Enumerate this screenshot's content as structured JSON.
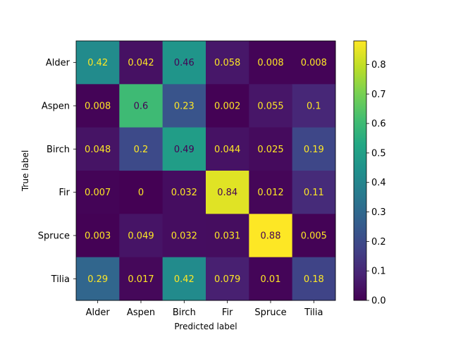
{
  "chart_data": {
    "type": "heatmap",
    "title": "",
    "xlabel": "Predicted label",
    "ylabel": "True label",
    "x_categories": [
      "Alder",
      "Aspen",
      "Birch",
      "Fir",
      "Spruce",
      "Tilia"
    ],
    "y_categories": [
      "Alder",
      "Aspen",
      "Birch",
      "Fir",
      "Spruce",
      "Tilia"
    ],
    "values": [
      [
        0.42,
        0.042,
        0.46,
        0.058,
        0.008,
        0.008
      ],
      [
        0.008,
        0.6,
        0.23,
        0.002,
        0.055,
        0.1
      ],
      [
        0.048,
        0.2,
        0.49,
        0.044,
        0.025,
        0.19
      ],
      [
        0.007,
        0,
        0.032,
        0.84,
        0.012,
        0.11
      ],
      [
        0.003,
        0.049,
        0.032,
        0.031,
        0.88,
        0.005
      ],
      [
        0.29,
        0.017,
        0.42,
        0.079,
        0.01,
        0.18
      ]
    ],
    "cell_labels": [
      [
        "0.42",
        "0.042",
        "0.46",
        "0.058",
        "0.008",
        "0.008"
      ],
      [
        "0.008",
        "0.6",
        "0.23",
        "0.002",
        "0.055",
        "0.1"
      ],
      [
        "0.048",
        "0.2",
        "0.49",
        "0.044",
        "0.025",
        "0.19"
      ],
      [
        "0.007",
        "0",
        "0.032",
        "0.84",
        "0.012",
        "0.11"
      ],
      [
        "0.003",
        "0.049",
        "0.032",
        "0.031",
        "0.88",
        "0.005"
      ],
      [
        "0.29",
        "0.017",
        "0.42",
        "0.079",
        "0.01",
        "0.18"
      ]
    ],
    "colormap": "viridis",
    "colorbar": {
      "range": [
        0,
        0.88
      ],
      "ticks": [
        0.0,
        0.1,
        0.2,
        0.3,
        0.4,
        0.5,
        0.6,
        0.7,
        0.8
      ],
      "tick_labels": [
        "0.0",
        "0.1",
        "0.2",
        "0.3",
        "0.4",
        "0.5",
        "0.6",
        "0.7",
        "0.8"
      ]
    },
    "text_colors": {
      "on_dark": "#fde725",
      "on_light": "#440154"
    },
    "grid": false,
    "legend": "colorbar-right"
  }
}
